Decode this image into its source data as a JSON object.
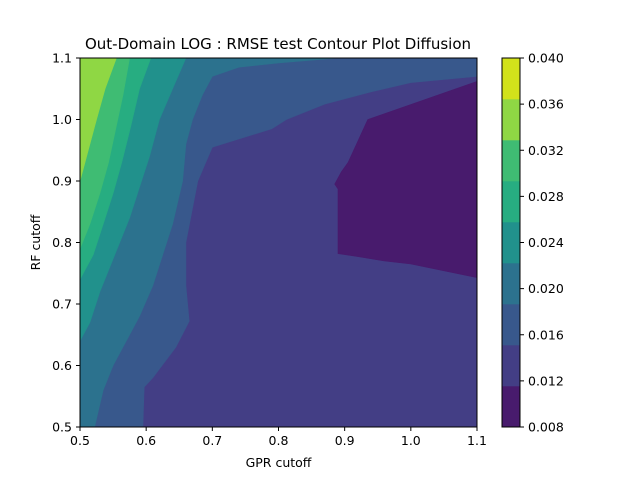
{
  "chart_data": {
    "type": "contour",
    "title": "Out-Domain LOG : RMSE test Contour Plot Diffusion",
    "xlabel": "GPR cutoff",
    "ylabel": "RF cutoff",
    "xlim": [
      0.5,
      1.1
    ],
    "ylim": [
      0.5,
      1.1
    ],
    "xticks": [
      "0.5",
      "0.6",
      "0.7",
      "0.8",
      "0.9",
      "1.0",
      "1.1"
    ],
    "yticks": [
      "0.5",
      "0.6",
      "0.7",
      "0.8",
      "0.9",
      "1.0",
      "1.1"
    ],
    "colorbar": {
      "levels": [
        0.008,
        0.012,
        0.016,
        0.02,
        0.024,
        0.028,
        0.032,
        0.036,
        0.04
      ],
      "ticks": [
        "0.008",
        "0.012",
        "0.016",
        "0.020",
        "0.024",
        "0.028",
        "0.032",
        "0.036",
        "0.040"
      ],
      "colors": [
        "#481b6d",
        "#433e85",
        "#38588c",
        "#2c728e",
        "#21918c",
        "#27ad81",
        "#3fbc73",
        "#8fd744",
        "#d2e21b"
      ]
    },
    "regions": [
      {
        "name": "band-0.012-0.016",
        "level_index": 1,
        "points": [
          [
            0.5,
            0.5
          ],
          [
            1.1,
            0.5
          ],
          [
            1.1,
            1.1
          ],
          [
            0.5,
            1.1
          ]
        ]
      },
      {
        "name": "band-0.016-0.020",
        "level_index": 2,
        "points": [
          [
            0.5,
            0.5
          ],
          [
            0.595,
            0.5
          ],
          [
            0.597,
            0.565
          ],
          [
            0.61,
            0.58
          ],
          [
            0.645,
            0.63
          ],
          [
            0.665,
            0.672
          ],
          [
            0.66,
            0.73
          ],
          [
            0.66,
            0.8
          ],
          [
            0.678,
            0.9
          ],
          [
            0.7,
            0.955
          ],
          [
            0.79,
            0.985
          ],
          [
            0.812,
            1.0
          ],
          [
            0.87,
            1.025
          ],
          [
            0.94,
            1.045
          ],
          [
            1.0,
            1.06
          ],
          [
            1.1,
            1.07
          ],
          [
            1.1,
            1.1
          ],
          [
            0.5,
            1.1
          ]
        ]
      },
      {
        "name": "band-0.020-0.024",
        "level_index": 3,
        "points": [
          [
            0.5,
            0.5
          ],
          [
            0.522,
            0.5
          ],
          [
            0.535,
            0.56
          ],
          [
            0.55,
            0.6
          ],
          [
            0.57,
            0.64
          ],
          [
            0.59,
            0.68
          ],
          [
            0.61,
            0.73
          ],
          [
            0.625,
            0.78
          ],
          [
            0.64,
            0.83
          ],
          [
            0.655,
            0.9
          ],
          [
            0.66,
            0.96
          ],
          [
            0.67,
            1.0
          ],
          [
            0.685,
            1.04
          ],
          [
            0.7,
            1.07
          ],
          [
            0.74,
            1.085
          ],
          [
            0.8,
            1.092
          ],
          [
            0.89,
            1.1
          ],
          [
            0.5,
            1.1
          ]
        ]
      },
      {
        "name": "band-0.024-0.028",
        "level_index": 4,
        "points": [
          [
            0.5,
            0.5
          ],
          [
            0.5,
            0.64
          ],
          [
            0.515,
            0.67
          ],
          [
            0.53,
            0.72
          ],
          [
            0.545,
            0.76
          ],
          [
            0.56,
            0.8
          ],
          [
            0.575,
            0.84
          ],
          [
            0.59,
            0.89
          ],
          [
            0.605,
            0.94
          ],
          [
            0.62,
            1.0
          ],
          [
            0.64,
            1.05
          ],
          [
            0.66,
            1.1
          ],
          [
            0.5,
            1.1
          ]
        ]
      },
      {
        "name": "band-0.028-0.032",
        "level_index": 5,
        "points": [
          [
            0.5,
            0.74
          ],
          [
            0.52,
            0.78
          ],
          [
            0.535,
            0.83
          ],
          [
            0.55,
            0.88
          ],
          [
            0.563,
            0.93
          ],
          [
            0.577,
            0.99
          ],
          [
            0.59,
            1.05
          ],
          [
            0.607,
            1.1
          ],
          [
            0.5,
            1.1
          ]
        ]
      },
      {
        "name": "band-0.032-0.036",
        "level_index": 6,
        "points": [
          [
            0.5,
            0.79
          ],
          [
            0.515,
            0.83
          ],
          [
            0.53,
            0.88
          ],
          [
            0.543,
            0.93
          ],
          [
            0.553,
            0.98
          ],
          [
            0.565,
            1.04
          ],
          [
            0.575,
            1.1
          ],
          [
            0.5,
            1.1
          ]
        ]
      },
      {
        "name": "band-0.036-0.040",
        "level_index": 7,
        "points": [
          [
            0.5,
            0.9
          ],
          [
            0.51,
            0.94
          ],
          [
            0.525,
            1.0
          ],
          [
            0.538,
            1.05
          ],
          [
            0.555,
            1.1
          ],
          [
            0.5,
            1.1
          ]
        ]
      },
      {
        "name": "band-0.008-0.012",
        "level_index": 0,
        "points": [
          [
            0.935,
            1.0
          ],
          [
            1.1,
            1.062
          ],
          [
            1.1,
            0.743
          ],
          [
            1.0,
            0.765
          ],
          [
            0.96,
            0.77
          ],
          [
            0.92,
            0.777
          ],
          [
            0.89,
            0.782
          ],
          [
            0.89,
            0.887
          ],
          [
            0.885,
            0.895
          ],
          [
            0.895,
            0.915
          ],
          [
            0.905,
            0.93
          ]
        ]
      }
    ]
  }
}
